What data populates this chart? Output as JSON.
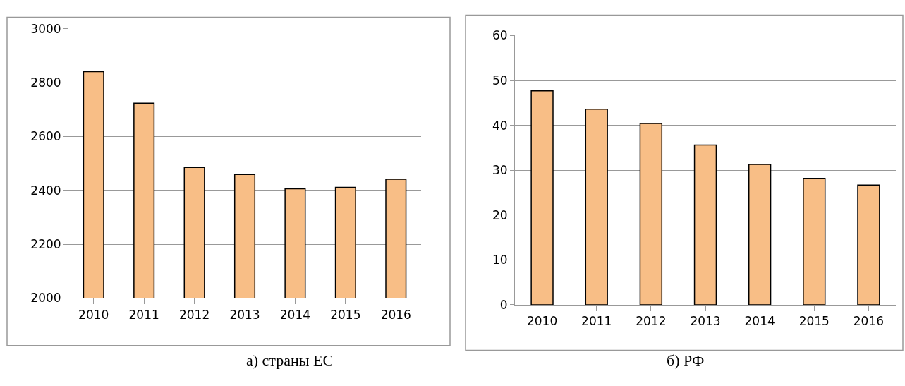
{
  "chart_data": [
    {
      "type": "bar",
      "title": "а) страны ЕС",
      "categories": [
        "2010",
        "2011",
        "2012",
        "2013",
        "2014",
        "2015",
        "2016"
      ],
      "values": [
        2841,
        2724,
        2485,
        2459,
        2406,
        2411,
        2441
      ],
      "color": "#f8be86",
      "ylim": [
        2000,
        3000
      ],
      "yticks": [
        2000,
        2200,
        2400,
        2600,
        2800,
        3000
      ],
      "grid": "y"
    },
    {
      "type": "bar",
      "title": "б) РФ",
      "categories": [
        "2010",
        "2011",
        "2012",
        "2013",
        "2014",
        "2015",
        "2016"
      ],
      "values": [
        47.7,
        43.6,
        40.4,
        35.6,
        31.3,
        28.2,
        26.7
      ],
      "color": "#f8be86",
      "ylim": [
        0,
        60
      ],
      "yticks": [
        0,
        10,
        20,
        30,
        40,
        50,
        60
      ],
      "grid": "y"
    }
  ]
}
